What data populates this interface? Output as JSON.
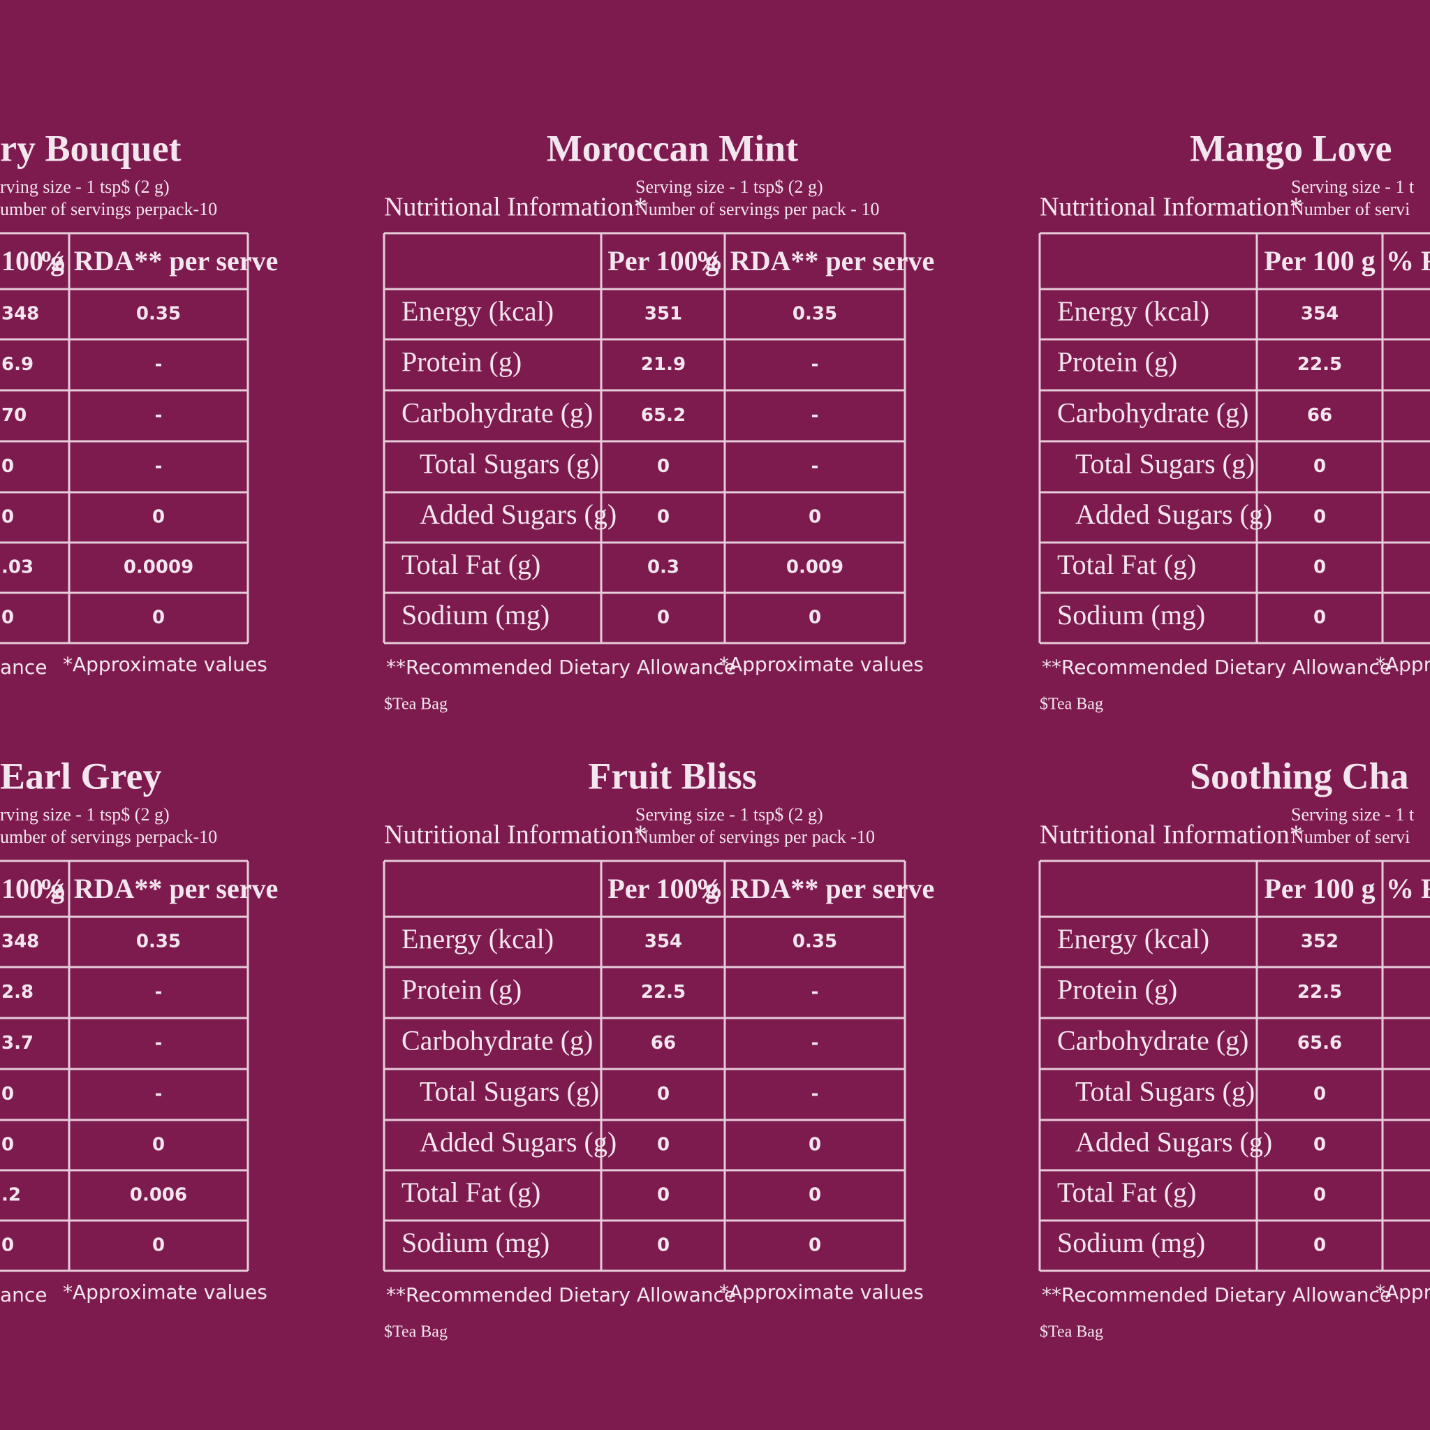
{
  "panels": [
    {
      "title": "ry Bouquet",
      "serving_size": "rving size - 1 tsp$  (2 g)",
      "servings_per_pack": "umber of servings perpack-10",
      "headers": [
        "100 g",
        "% RDA** per serve"
      ],
      "rows": [
        {
          "per100": "348",
          "rda": "0.35"
        },
        {
          "per100": "6.9",
          "rda": "-"
        },
        {
          "per100": "70",
          "rda": "-"
        },
        {
          "per100": "0",
          "rda": "-"
        },
        {
          "per100": "0",
          "rda": "0"
        },
        {
          "per100": ".03",
          "rda": "0.0009"
        },
        {
          "per100": "0",
          "rda": "0"
        }
      ],
      "footnote_rda": "ance",
      "footnote_approx": "*Approximate values"
    },
    {
      "title": "Moroccan Mint",
      "nutrition_label": "Nutritional Information*",
      "serving_size": "Serving size - 1 tsp$ (2 g)",
      "servings_per_pack": "Number of servings per pack - 10",
      "headers": [
        "Per 100 g",
        "% RDA** per serve"
      ],
      "rows": [
        {
          "label": "Energy (kcal)",
          "per100": "351",
          "rda": "0.35"
        },
        {
          "label": "Protein (g)",
          "per100": "21.9",
          "rda": "-"
        },
        {
          "label": "Carbohydrate (g)",
          "per100": "65.2",
          "rda": "-"
        },
        {
          "label": "Total Sugars (g)",
          "per100": "0",
          "rda": "-"
        },
        {
          "label": "Added Sugars (g)",
          "per100": "0",
          "rda": "0"
        },
        {
          "label": "Total Fat (g)",
          "per100": "0.3",
          "rda": "0.009"
        },
        {
          "label": "Sodium (mg)",
          "per100": "0",
          "rda": "0"
        }
      ],
      "footnote_rda": "**Recommended Dietary Allowance",
      "footnote_approx": "*Approximate values",
      "teabag": "$Tea Bag"
    },
    {
      "title": "Mango Love",
      "nutrition_label": "Nutritional Information*",
      "serving_size": "Serving size - 1 t",
      "servings_per_pack": "Number of servi",
      "headers": [
        "Per 100 g",
        "% RD"
      ],
      "rows": [
        {
          "label": "Energy (kcal)",
          "per100": "354"
        },
        {
          "label": "Protein (g)",
          "per100": "22.5"
        },
        {
          "label": "Carbohydrate (g)",
          "per100": "66"
        },
        {
          "label": "Total Sugars (g)",
          "per100": "0"
        },
        {
          "label": "Added Sugars (g)",
          "per100": "0"
        },
        {
          "label": "Total Fat (g)",
          "per100": "0"
        },
        {
          "label": "Sodium (mg)",
          "per100": "0"
        }
      ],
      "footnote_rda": "**Recommended Dietary Allowance",
      "footnote_approx": "*Appro",
      "teabag": "$Tea Bag"
    },
    {
      "title": "Earl Grey",
      "serving_size": "rving size - 1 tsp$ (2 g)",
      "servings_per_pack": "umber of servings perpack-10",
      "headers": [
        "100 g",
        "% RDA** per serve"
      ],
      "rows": [
        {
          "per100": "348",
          "rda": "0.35"
        },
        {
          "per100": "2.8",
          "rda": "-"
        },
        {
          "per100": "3.7",
          "rda": "-"
        },
        {
          "per100": "0",
          "rda": "-"
        },
        {
          "per100": "0",
          "rda": "0"
        },
        {
          "per100": ".2",
          "rda": "0.006"
        },
        {
          "per100": "0",
          "rda": "0"
        }
      ],
      "footnote_rda": "ance",
      "footnote_approx": "*Approximate values"
    },
    {
      "title": "Fruit Bliss",
      "nutrition_label": "Nutritional Information*",
      "serving_size": "Serving size - 1 tsp$ (2 g)",
      "servings_per_pack": "Number of servings per pack -10",
      "headers": [
        "Per 100 g",
        "% RDA** per serve"
      ],
      "rows": [
        {
          "label": "Energy (kcal)",
          "per100": "354",
          "rda": "0.35"
        },
        {
          "label": "Protein (g)",
          "per100": "22.5",
          "rda": "-"
        },
        {
          "label": "Carbohydrate (g)",
          "per100": "66",
          "rda": "-"
        },
        {
          "label": "Total Sugars (g)",
          "per100": "0",
          "rda": "-"
        },
        {
          "label": "Added Sugars (g)",
          "per100": "0",
          "rda": "0"
        },
        {
          "label": "Total Fat (g)",
          "per100": "0",
          "rda": "0"
        },
        {
          "label": "Sodium (mg)",
          "per100": "0",
          "rda": "0"
        }
      ],
      "footnote_rda": "**Recommended Dietary Allowance",
      "footnote_approx": "*Approximate values",
      "teabag": "$Tea Bag"
    },
    {
      "title": "Soothing Cha",
      "nutrition_label": "Nutritional Information*",
      "serving_size": "Serving size - 1 t",
      "servings_per_pack": "Number of servi",
      "headers": [
        "Per 100 g",
        "% RD"
      ],
      "rows": [
        {
          "label": "Energy (kcal)",
          "per100": "352"
        },
        {
          "label": "Protein (g)",
          "per100": "22.5"
        },
        {
          "label": "Carbohydrate (g)",
          "per100": "65.6"
        },
        {
          "label": "Total Sugars (g)",
          "per100": "0"
        },
        {
          "label": "Added Sugars (g)",
          "per100": "0"
        },
        {
          "label": "Total Fat (g)",
          "per100": "0"
        },
        {
          "label": "Sodium (mg)",
          "per100": "0"
        }
      ],
      "footnote_rda": "**Recommended Dietary Allowance",
      "footnote_approx": "*Appro",
      "teabag": "$Tea Bag"
    }
  ]
}
